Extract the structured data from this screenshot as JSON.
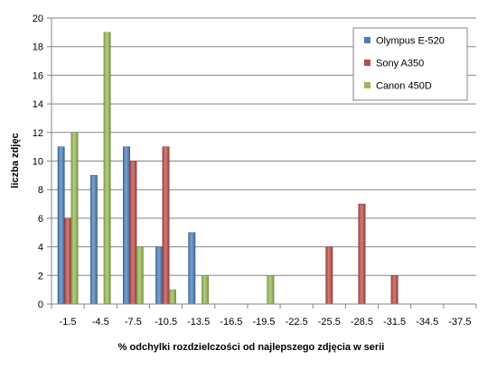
{
  "chart_data": {
    "type": "bar",
    "title": "",
    "xlabel": "% odchylki  rozdzielczości  od najlepszego  zdjęcia  w serii",
    "ylabel": "liczba zdjęc",
    "ylim": [
      0,
      20
    ],
    "yticks": [
      "0",
      "2",
      "4",
      "6",
      "8",
      "10",
      "12",
      "14",
      "16",
      "18",
      "20"
    ],
    "categories": [
      "-1.5",
      "-4.5",
      "-7.5",
      "-10.5",
      "-13.5",
      "-16.5",
      "-19.5",
      "-22.5",
      "-25.5",
      "-28.5",
      "-31.5",
      "-34.5",
      "-37.5"
    ],
    "grid": true,
    "legend_position": "top-right",
    "series": [
      {
        "name": "Olympus E-520",
        "color": "#4a7ebb",
        "values": [
          11,
          9,
          11,
          4,
          5,
          0,
          0,
          0,
          0,
          0,
          0,
          0,
          0
        ]
      },
      {
        "name": "Sony A350",
        "color": "#be4b48",
        "values": [
          6,
          0,
          10,
          11,
          0,
          0,
          0,
          0,
          4,
          7,
          2,
          0,
          0
        ]
      },
      {
        "name": "Canon 450D",
        "color": "#98b954",
        "values": [
          12,
          19,
          4,
          1,
          2,
          0,
          2,
          0,
          0,
          0,
          0,
          0,
          0
        ]
      }
    ]
  }
}
